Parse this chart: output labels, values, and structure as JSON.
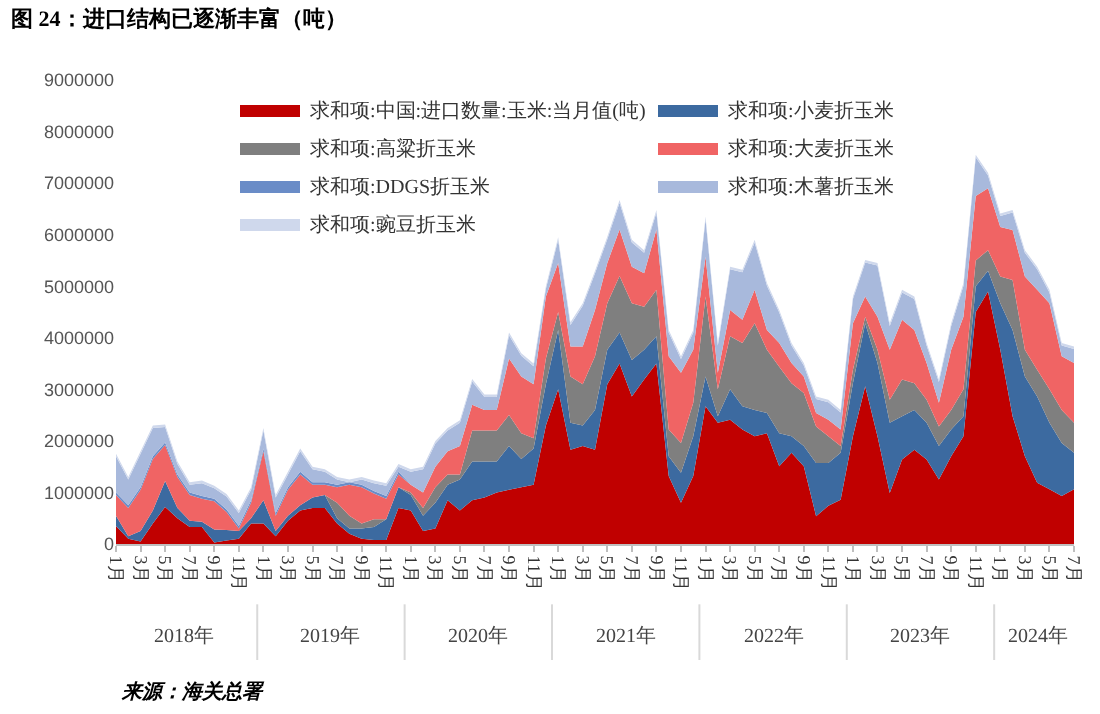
{
  "chart_data": {
    "type": "area",
    "stacked": true,
    "title": "图 24：进口结构已逐渐丰富（吨）",
    "categories": [
      "1月",
      null,
      "3月",
      null,
      "5月",
      null,
      "7月",
      null,
      "9月",
      null,
      "11月",
      null,
      "1月",
      null,
      "3月",
      null,
      "5月",
      null,
      "7月",
      null,
      "9月",
      null,
      "11月",
      null,
      "1月",
      null,
      "3月",
      null,
      "5月",
      null,
      "7月",
      null,
      "9月",
      null,
      "11月",
      null,
      "1月",
      null,
      "3月",
      null,
      "5月",
      null,
      "7月",
      null,
      "9月",
      null,
      "11月",
      null,
      "1月",
      null,
      "3月",
      null,
      "5月",
      null,
      "7月",
      null,
      "9月",
      null,
      "11月",
      null,
      "1月",
      null,
      "3月",
      null,
      "5月",
      null,
      "7月",
      null,
      "9月",
      null,
      "11月",
      null,
      "1月",
      null,
      "3月",
      null,
      "5月",
      null,
      "7月"
    ],
    "series": [
      {
        "name": "求和项:中国:进口数量:玉米:当月值(吨)",
        "color": "#c00000",
        "values": [
          350000,
          100000,
          50000,
          400000,
          720000,
          500000,
          330000,
          330000,
          30000,
          70000,
          100000,
          400000,
          400000,
          150000,
          450000,
          650000,
          700000,
          700000,
          400000,
          200000,
          100000,
          80000,
          80000,
          700000,
          650000,
          250000,
          300000,
          850000,
          650000,
          850000,
          900000,
          1000000,
          1050000,
          1100000,
          1150000,
          2300000,
          3000000,
          1830000,
          1900000,
          1830000,
          3100000,
          3500000,
          2860000,
          3190000,
          3500000,
          1320000,
          800000,
          1320000,
          2670000,
          2350000,
          2410000,
          2220000,
          2090000,
          2150000,
          1510000,
          1770000,
          1510000,
          540000,
          740000,
          860000,
          2090000,
          3060000,
          2090000,
          990000,
          1640000,
          1830000,
          1640000,
          1250000,
          1700000,
          2090000,
          4500000,
          4900000,
          3770000,
          2480000,
          1700000,
          1190000,
          1060000,
          930000,
          1060000
        ]
      },
      {
        "name": "求和项:小麦折玉米",
        "color": "#3c6aa0",
        "values": [
          200000,
          50000,
          200000,
          250000,
          500000,
          200000,
          120000,
          100000,
          250000,
          200000,
          150000,
          100000,
          450000,
          100000,
          100000,
          100000,
          200000,
          250000,
          100000,
          100000,
          200000,
          250000,
          400000,
          400000,
          300000,
          300000,
          500000,
          300000,
          600000,
          750000,
          700000,
          600000,
          850000,
          550000,
          700000,
          800000,
          1150000,
          520000,
          400000,
          770000,
          670000,
          600000,
          710000,
          580000,
          530000,
          380000,
          580000,
          770000,
          580000,
          130000,
          590000,
          450000,
          510000,
          390000,
          640000,
          320000,
          390000,
          1030000,
          830000,
          910000,
          1030000,
          1220000,
          1420000,
          1360000,
          840000,
          770000,
          710000,
          650000,
          520000,
          390000,
          500000,
          400000,
          900000,
          1670000,
          1550000,
          1670000,
          1290000,
          1030000,
          710000
        ]
      },
      {
        "name": "求和项:高粱折玉米",
        "color": "#7f7f7f",
        "values": [
          0,
          0,
          0,
          0,
          0,
          0,
          0,
          0,
          0,
          0,
          0,
          0,
          0,
          0,
          0,
          0,
          0,
          0,
          300000,
          250000,
          100000,
          150000,
          0,
          0,
          50000,
          150000,
          300000,
          200000,
          100000,
          600000,
          600000,
          600000,
          600000,
          500000,
          200000,
          500000,
          350000,
          900000,
          800000,
          1040000,
          900000,
          1100000,
          1100000,
          830000,
          900000,
          520000,
          580000,
          650000,
          1550000,
          520000,
          1030000,
          1230000,
          1680000,
          1230000,
          1290000,
          1030000,
          1030000,
          710000,
          520000,
          130000,
          260000,
          130000,
          260000,
          450000,
          710000,
          520000,
          450000,
          380000,
          380000,
          520000,
          500000,
          400000,
          520000,
          970000,
          520000,
          520000,
          650000,
          640000,
          580000
        ]
      },
      {
        "name": "求和项:大麦折玉米",
        "color": "#f06464",
        "values": [
          400000,
          550000,
          800000,
          1000000,
          700000,
          600000,
          500000,
          450000,
          550000,
          350000,
          50000,
          300000,
          950000,
          300000,
          500000,
          600000,
          250000,
          200000,
          300000,
          600000,
          700000,
          500000,
          400000,
          250000,
          150000,
          300000,
          400000,
          450000,
          550000,
          500000,
          400000,
          400000,
          1100000,
          1100000,
          1050000,
          1200000,
          950000,
          580000,
          730000,
          900000,
          780000,
          900000,
          710000,
          650000,
          1170000,
          1420000,
          1360000,
          1030000,
          770000,
          320000,
          510000,
          450000,
          650000,
          380000,
          460000,
          390000,
          320000,
          260000,
          320000,
          320000,
          900000,
          390000,
          640000,
          970000,
          1160000,
          1030000,
          710000,
          460000,
          1170000,
          1410000,
          1250000,
          1200000,
          960000,
          970000,
          1420000,
          1550000,
          1670000,
          1040000,
          1160000
        ]
      },
      {
        "name": "求和项:DDGS折玉米",
        "color": "#6a8cc7",
        "values": [
          50000,
          50000,
          50000,
          50000,
          50000,
          50000,
          50000,
          50000,
          50000,
          50000,
          50000,
          50000,
          50000,
          50000,
          50000,
          50000,
          50000,
          50000,
          50000,
          50000,
          50000,
          50000,
          50000,
          50000,
          0,
          0,
          0,
          0,
          0,
          0,
          0,
          0,
          0,
          0,
          0,
          0,
          0,
          0,
          0,
          0,
          0,
          0,
          0,
          0,
          0,
          0,
          0,
          0,
          0,
          0,
          0,
          0,
          0,
          0,
          0,
          0,
          0,
          0,
          0,
          0,
          0,
          0,
          0,
          0,
          0,
          0,
          0,
          0,
          0,
          0,
          0,
          0,
          0,
          0,
          0,
          0,
          0,
          0,
          0
        ]
      },
      {
        "name": "求和项:木薯折玉米",
        "color": "#a8b9dc",
        "values": [
          700000,
          500000,
          650000,
          550000,
          300000,
          200000,
          150000,
          250000,
          200000,
          250000,
          250000,
          200000,
          350000,
          300000,
          250000,
          400000,
          250000,
          200000,
          100000,
          0,
          100000,
          150000,
          200000,
          100000,
          250000,
          450000,
          450000,
          400000,
          450000,
          450000,
          250000,
          250000,
          450000,
          400000,
          350000,
          150000,
          450000,
          420000,
          790000,
          710000,
          460000,
          520000,
          470000,
          400000,
          330000,
          460000,
          270000,
          330000,
          730000,
          530000,
          790000,
          920000,
          920000,
          860000,
          590000,
          340000,
          210000,
          270000,
          340000,
          330000,
          470000,
          660000,
          990000,
          460000,
          530000,
          600000,
          340000,
          400000,
          460000,
          600000,
          750000,
          250000,
          210000,
          340000,
          460000,
          400000,
          210000,
          210000,
          270000
        ]
      },
      {
        "name": "求和项:豌豆折玉米",
        "color": "#cfd8ec",
        "values": [
          50000,
          50000,
          50000,
          50000,
          50000,
          50000,
          50000,
          50000,
          50000,
          50000,
          50000,
          50000,
          50000,
          50000,
          50000,
          50000,
          50000,
          50000,
          50000,
          50000,
          50000,
          50000,
          50000,
          50000,
          50000,
          50000,
          50000,
          50000,
          50000,
          50000,
          50000,
          50000,
          50000,
          50000,
          50000,
          50000,
          50000,
          50000,
          50000,
          50000,
          50000,
          50000,
          50000,
          50000,
          50000,
          50000,
          50000,
          50000,
          50000,
          50000,
          50000,
          50000,
          50000,
          50000,
          50000,
          50000,
          50000,
          50000,
          50000,
          50000,
          50000,
          50000,
          50000,
          50000,
          50000,
          50000,
          50000,
          50000,
          50000,
          50000,
          50000,
          50000,
          50000,
          50000,
          50000,
          50000,
          50000,
          50000,
          50000
        ]
      }
    ],
    "ylim": [
      0,
      9000000
    ],
    "yticks": [
      0,
      1000000,
      2000000,
      3000000,
      4000000,
      5000000,
      6000000,
      7000000,
      8000000,
      9000000
    ],
    "legend": "top",
    "annotations": [
      "2018年",
      "2019年",
      "2020年",
      "2021年",
      "2022年",
      "2023年",
      "2024年",
      "来源：海关总署"
    ]
  }
}
